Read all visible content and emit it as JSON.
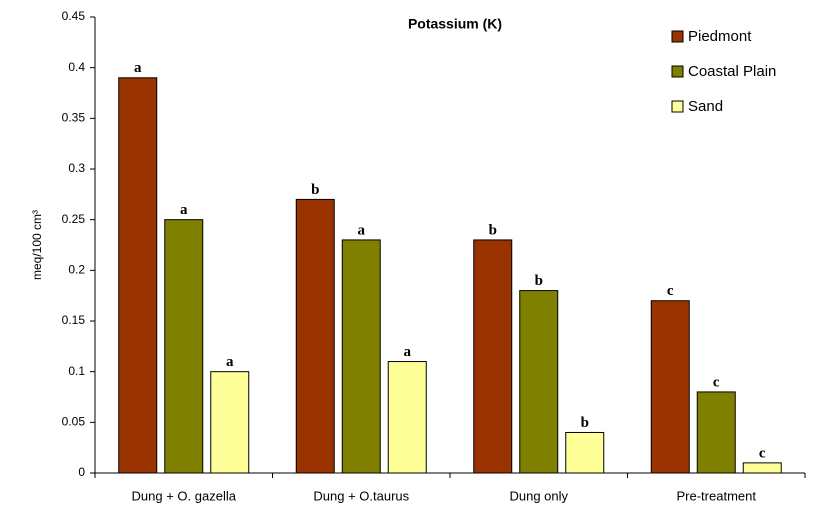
{
  "chart_data": {
    "type": "bar",
    "title": "Potassium (K)",
    "y_label": "meq/100 cm³",
    "categories": [
      "Dung + O. gazella",
      "Dung + O.taurus",
      "Dung only",
      "Pre-treatment"
    ],
    "series": [
      {
        "name": "Piedmont",
        "color": "#993300",
        "values": [
          0.39,
          0.27,
          0.23,
          0.17
        ],
        "annotations": [
          "a",
          "b",
          "b",
          "c"
        ]
      },
      {
        "name": "Coastal Plain",
        "color": "#808000",
        "values": [
          0.25,
          0.23,
          0.18,
          0.08
        ],
        "annotations": [
          "a",
          "a",
          "b",
          "c"
        ]
      },
      {
        "name": "Sand",
        "color": "#ffff99",
        "values": [
          0.1,
          0.11,
          0.04,
          0.01
        ],
        "annotations": [
          "a",
          "a",
          "b",
          "c"
        ]
      }
    ],
    "ylim": [
      0,
      0.45
    ],
    "yticks": [
      0,
      0.05,
      0.1,
      0.15,
      0.2,
      0.25,
      0.3,
      0.35,
      0.4,
      0.45
    ],
    "legend": "top-right",
    "grid": false
  }
}
